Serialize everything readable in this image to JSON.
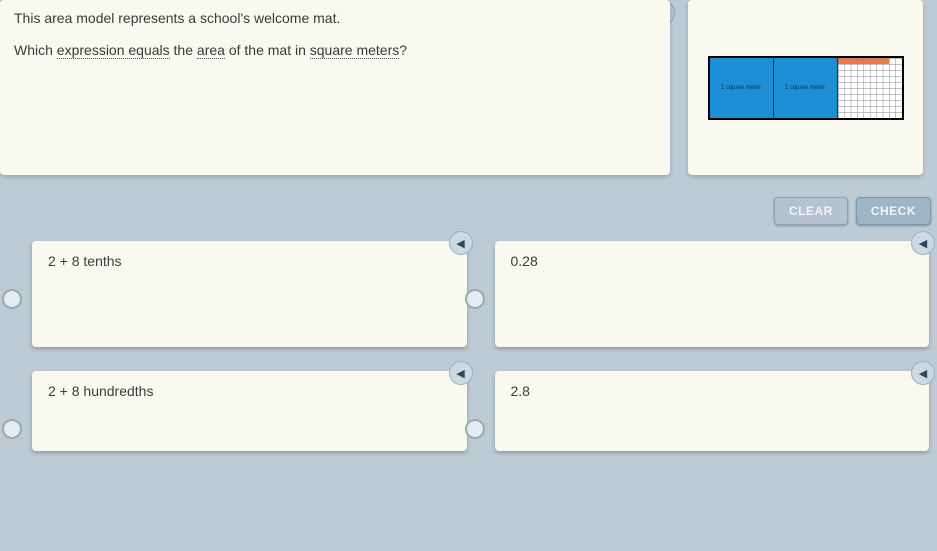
{
  "question": {
    "line1": "This area model represents a school's welcome mat.",
    "line2_pre": "Which ",
    "vocab1": "expression equals",
    "mid1": " the ",
    "vocab2": "area",
    "mid2": " of the mat in ",
    "vocab3": "square meters",
    "post": "?"
  },
  "model": {
    "unit_label": "1 square meter",
    "full_units": 2,
    "partial_fill_text": "8 hundredths",
    "colors": {
      "unit_fill": "#1c8fd6",
      "unit_border": "#003a63",
      "partial_fill": "#e36b3a",
      "frame": "#000000",
      "grid": "#888888",
      "card_bg": "#f9f9f0",
      "page_bg": "#becbd4"
    }
  },
  "buttons": {
    "clear": "CLEAR",
    "check": "CHECK"
  },
  "answers": [
    {
      "label": "2 + 8 tenths"
    },
    {
      "label": "0.28"
    },
    {
      "label": "2 + 8 hundredths"
    },
    {
      "label": "2.8"
    }
  ],
  "icons": {
    "speaker": "◀"
  }
}
